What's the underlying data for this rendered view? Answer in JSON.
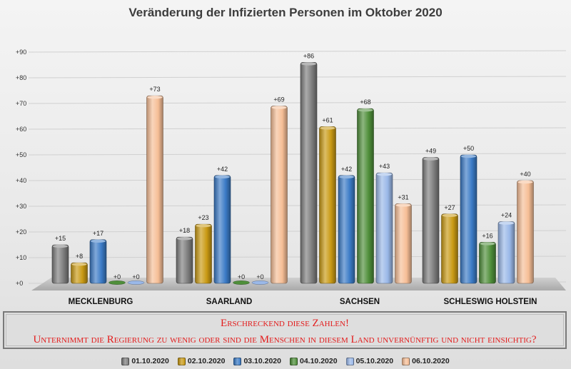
{
  "chart_data": {
    "type": "bar",
    "title": "Veränderung der Infizierten Personen im Oktober 2020",
    "categories": [
      "MECKLENBURG",
      "SAARLAND",
      "SACHSEN",
      "SCHLESWIG HOLSTEIN"
    ],
    "series": [
      {
        "name": "01.10.2020",
        "color": "#7d7d7d",
        "values": [
          15,
          18,
          86,
          49
        ],
        "labels": [
          "+15",
          "+18",
          "+86",
          "+49"
        ]
      },
      {
        "name": "02.10.2020",
        "color": "#c99a14",
        "values": [
          8,
          23,
          61,
          27
        ],
        "labels": [
          "+8",
          "+23",
          "+61",
          "+27"
        ]
      },
      {
        "name": "03.10.2020",
        "color": "#3b7bc6",
        "values": [
          17,
          42,
          42,
          50
        ],
        "labels": [
          "+17",
          "+42",
          "+42",
          "+50"
        ]
      },
      {
        "name": "04.10.2020",
        "color": "#4f8f3a",
        "values": [
          0,
          0,
          68,
          16
        ],
        "labels": [
          "+0",
          "+0",
          "+68",
          "+16"
        ]
      },
      {
        "name": "05.10.2020",
        "color": "#9ab8e8",
        "values": [
          0,
          0,
          43,
          24
        ],
        "labels": [
          "+0",
          "+0",
          "+43",
          "+24"
        ]
      },
      {
        "name": "06.10.2020",
        "color": "#f6be96",
        "values": [
          73,
          69,
          31,
          40
        ],
        "labels": [
          "+73",
          "+69",
          "+31",
          "+40"
        ]
      }
    ],
    "yticks": [
      "+0",
      "+10",
      "+20",
      "+30",
      "+40",
      "+50",
      "+60",
      "+70",
      "+80",
      "+90"
    ],
    "ylim": [
      0,
      90
    ],
    "grid": true,
    "legend": "bottom"
  },
  "note": {
    "line1": "Erschreckend diese Zahlen!",
    "line2": "Unternimmt die Regierung zu wenig oder sind die Menschen in diesem Land unvernünftig und nicht einsichtig?"
  }
}
